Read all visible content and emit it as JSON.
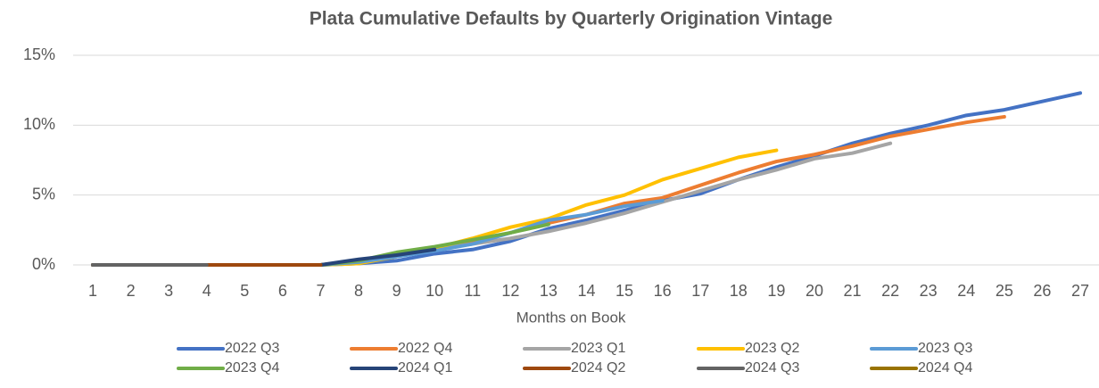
{
  "chart_data": {
    "type": "line",
    "title": "Plata Cumulative Defaults by Quarterly Origination Vintage",
    "x_label": "Months on Book",
    "categories": [
      1,
      2,
      3,
      4,
      5,
      6,
      7,
      8,
      9,
      10,
      11,
      12,
      13,
      14,
      15,
      16,
      17,
      18,
      19,
      20,
      21,
      22,
      23,
      24,
      25,
      26,
      27
    ],
    "ylim": [
      0,
      15
    ],
    "yticks": [
      {
        "value": 0,
        "label": "0%"
      },
      {
        "value": 5,
        "label": "5%"
      },
      {
        "value": 10,
        "label": "10%"
      },
      {
        "value": 15,
        "label": "15%"
      }
    ],
    "grid": true,
    "legend": "bottom",
    "series": [
      {
        "name": "2022 Q3",
        "color": "#4472c4",
        "values": [
          0,
          0,
          0,
          0,
          0,
          0,
          0,
          0.1,
          0.3,
          0.8,
          1.1,
          1.7,
          2.6,
          3.2,
          3.9,
          4.6,
          5.1,
          6.1,
          7.0,
          7.8,
          8.7,
          9.4,
          10.0,
          10.7,
          11.1,
          11.7,
          12.3
        ]
      },
      {
        "name": "2022 Q4",
        "color": "#ed7d31",
        "values": [
          0,
          0,
          0,
          0,
          0,
          0,
          0,
          0.3,
          0.7,
          1.1,
          1.6,
          2.3,
          3.0,
          3.6,
          4.4,
          4.8,
          5.7,
          6.6,
          7.4,
          7.9,
          8.5,
          9.2,
          9.7,
          10.2,
          10.6,
          null,
          null
        ]
      },
      {
        "name": "2023 Q1",
        "color": "#a5a5a5",
        "values": [
          0,
          0,
          0,
          0,
          0,
          0,
          0,
          0.2,
          0.6,
          1.1,
          1.5,
          1.9,
          2.4,
          3.0,
          3.7,
          4.5,
          5.3,
          6.1,
          6.8,
          7.6,
          8.0,
          8.7,
          null,
          null,
          null,
          null,
          null
        ]
      },
      {
        "name": "2023 Q2",
        "color": "#ffc000",
        "values": [
          0,
          0,
          0,
          0,
          0,
          0,
          0,
          0.1,
          0.6,
          1.2,
          1.9,
          2.7,
          3.3,
          4.3,
          5.0,
          6.1,
          6.9,
          7.7,
          8.2,
          null,
          null,
          null,
          null,
          null,
          null,
          null,
          null
        ]
      },
      {
        "name": "2023 Q3",
        "color": "#5b9bd5",
        "values": [
          0,
          0,
          0,
          0,
          0,
          0,
          0,
          0.2,
          0.6,
          1.0,
          1.5,
          2.3,
          3.2,
          3.6,
          4.2,
          4.6,
          null,
          null,
          null,
          null,
          null,
          null,
          null,
          null,
          null,
          null,
          null
        ]
      },
      {
        "name": "2023 Q4",
        "color": "#70ad47",
        "values": [
          0,
          0,
          0,
          0,
          0,
          0,
          0,
          0.3,
          0.9,
          1.3,
          1.8,
          2.3,
          2.9,
          null,
          null,
          null,
          null,
          null,
          null,
          null,
          null,
          null,
          null,
          null,
          null,
          null,
          null
        ]
      },
      {
        "name": "2024 Q1",
        "color": "#264478",
        "values": [
          0,
          0,
          0,
          0,
          0,
          0,
          0,
          0.4,
          0.7,
          1.1,
          null,
          null,
          null,
          null,
          null,
          null,
          null,
          null,
          null,
          null,
          null,
          null,
          null,
          null,
          null,
          null,
          null
        ]
      },
      {
        "name": "2024 Q2",
        "color": "#9e480e",
        "values": [
          0,
          0,
          0,
          0,
          0,
          0,
          0,
          null,
          null,
          null,
          null,
          null,
          null,
          null,
          null,
          null,
          null,
          null,
          null,
          null,
          null,
          null,
          null,
          null,
          null,
          null,
          null
        ]
      },
      {
        "name": "2024 Q3",
        "color": "#636363",
        "values": [
          0,
          0,
          0,
          0,
          null,
          null,
          null,
          null,
          null,
          null,
          null,
          null,
          null,
          null,
          null,
          null,
          null,
          null,
          null,
          null,
          null,
          null,
          null,
          null,
          null,
          null,
          null
        ]
      },
      {
        "name": "2024 Q4",
        "color": "#997300",
        "values": [
          0,
          null,
          null,
          null,
          null,
          null,
          null,
          null,
          null,
          null,
          null,
          null,
          null,
          null,
          null,
          null,
          null,
          null,
          null,
          null,
          null,
          null,
          null,
          null,
          null,
          null,
          null
        ]
      }
    ]
  }
}
